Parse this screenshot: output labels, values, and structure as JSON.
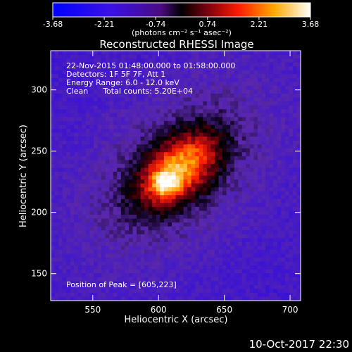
{
  "chart_data": {
    "type": "heatmap",
    "title": "Reconstructed RHESSI Image",
    "xlabel": "Heliocentric X (arcsec)",
    "ylabel": "Heliocentric Y (arcsec)",
    "xlim": [
      518,
      708
    ],
    "ylim": [
      128,
      332
    ],
    "x_ticks": [
      "550",
      "600",
      "650",
      "700"
    ],
    "x_tick_values": [
      550,
      600,
      650,
      700
    ],
    "y_ticks": [
      "150",
      "200",
      "250",
      "300"
    ],
    "y_tick_values": [
      150,
      200,
      250,
      300
    ],
    "colorbar": {
      "min": -3.68,
      "max": 3.68,
      "ticks": [
        "-3.68",
        "-2.21",
        "-0.74",
        "0.74",
        "2.21",
        "3.68"
      ],
      "tick_values": [
        -3.68,
        -2.21,
        -0.74,
        0.74,
        2.21,
        3.68
      ],
      "unit_label": "(photons cm⁻² s⁻¹ asec⁻²)"
    },
    "annotations": [
      "22-Nov-2015 01:48:00.000 to 01:58:00.000",
      "Detectors: 1F 5F 7F, Att 1",
      "Energy Range: 6.0 - 12.0 keV",
      "Clean      Total counts: 5.20E+04"
    ],
    "peak_label": "Position of Peak = [605,223]",
    "peak": [
      605,
      223
    ]
  },
  "footer": {
    "timestamp": "10-Oct-2017 22:30"
  }
}
